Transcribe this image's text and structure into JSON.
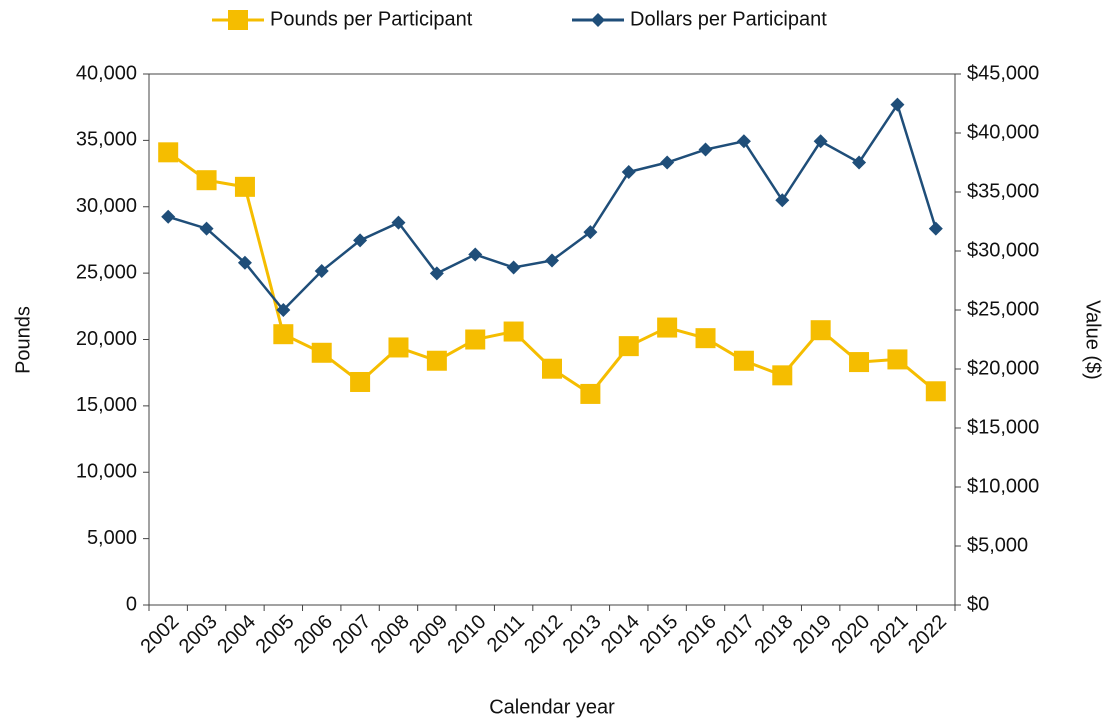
{
  "chart_data": {
    "type": "line",
    "x_label": "Calendar year",
    "y_label": "Pounds",
    "y2_label": "Value ($)",
    "legend": "top",
    "categories": [
      "2002",
      "2003",
      "2004",
      "2005",
      "2006",
      "2007",
      "2008",
      "2009",
      "2010",
      "2011",
      "2012",
      "2013",
      "2014",
      "2015",
      "2016",
      "2017",
      "2018",
      "2019",
      "2020",
      "2021",
      "2022"
    ],
    "series": [
      {
        "name": "Pounds per Participant",
        "color": "#f5bd00",
        "marker": "square",
        "axis": "y",
        "values": [
          34100,
          32000,
          31500,
          20400,
          19000,
          16800,
          19400,
          18400,
          20000,
          20600,
          17800,
          15900,
          19500,
          20900,
          20100,
          18400,
          17300,
          20700,
          18300,
          18500,
          16100
        ]
      },
      {
        "name": "Dollars per Participant",
        "color": "#1f4e79",
        "marker": "diamond",
        "axis": "y2",
        "values": [
          32900,
          31900,
          29000,
          25000,
          28300,
          30900,
          32400,
          28100,
          29700,
          28600,
          29200,
          31600,
          36700,
          37500,
          38600,
          39300,
          34300,
          39300,
          37500,
          42400,
          31900
        ]
      }
    ],
    "ylim": [
      0,
      40000
    ],
    "yticks": [
      0,
      {
        "value": 5000,
        "label": "5,000"
      },
      {
        "value": 10000,
        "label": "10,000"
      },
      {
        "value": 15000,
        "label": "15,000"
      },
      {
        "value": 20000,
        "label": "20,000"
      },
      {
        "value": 25000,
        "label": "25,000"
      },
      {
        "value": 30000,
        "label": "30,000"
      },
      {
        "value": 35000,
        "label": "35,000"
      },
      {
        "value": 40000,
        "label": "40,000"
      }
    ],
    "y2lim": [
      0,
      45000
    ],
    "y2ticks": [
      {
        "value": 0,
        "label": "$0"
      },
      {
        "value": 5000,
        "label": "$5,000"
      },
      {
        "value": 10000,
        "label": "$10,000"
      },
      {
        "value": 15000,
        "label": "$15,000"
      },
      {
        "value": 20000,
        "label": "$20,000"
      },
      {
        "value": 25000,
        "label": "$25,000"
      },
      {
        "value": 30000,
        "label": "$30,000"
      },
      {
        "value": 35000,
        "label": "$35,000"
      },
      {
        "value": 40000,
        "label": "$40,000"
      },
      {
        "value": 45000,
        "label": "$45,000"
      }
    ]
  }
}
